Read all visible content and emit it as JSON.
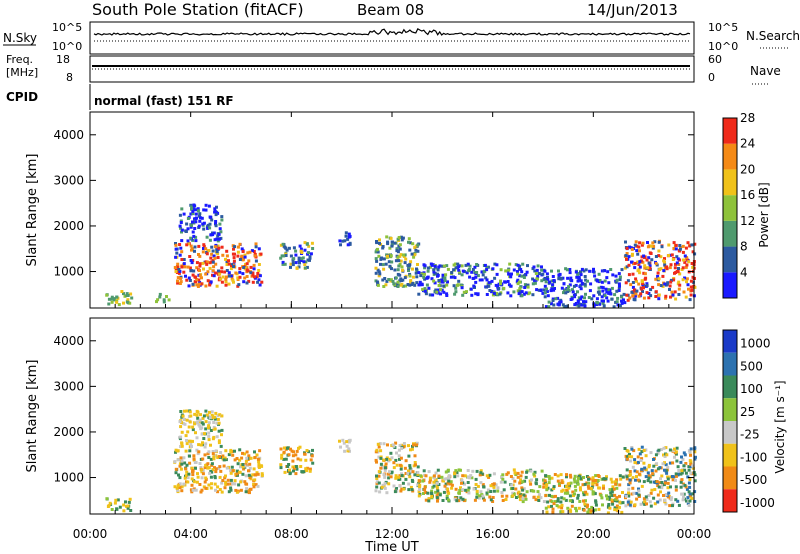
{
  "header": {
    "station": "South Pole Station (fitACF)",
    "beam": "Beam 08",
    "date": "14/Jun/2013"
  },
  "panels": {
    "nsky_label": "N.Sky",
    "nsearch_label": "N.Search",
    "nsky_ticks": [
      "10^5",
      "10^0"
    ],
    "nsearch_ticks": [
      "10^5",
      "10^0"
    ],
    "freq_label": "Freq.",
    "freq_unit": "[MHz]",
    "freq_ticks": [
      "18",
      "8"
    ],
    "nave_label": "Nave",
    "nave_ticks": [
      "60",
      "0"
    ],
    "cpid_label": "CPID",
    "cpid_text": "normal (fast) 151 RF"
  },
  "chart_data": [
    {
      "type": "heatmap",
      "name": "power",
      "ylabel": "Slant Range [km]",
      "xlabel": "",
      "ylim": [
        200,
        4500
      ],
      "xlim": [
        0,
        24
      ],
      "yticks": [
        1000,
        2000,
        3000,
        4000
      ],
      "colorbar": {
        "label": "Power [dB]",
        "ticks": [
          "4",
          "8",
          "12",
          "16",
          "20",
          "24",
          "28"
        ],
        "colors": [
          "#1a1aff",
          "#2c5aa0",
          "#4f9a6e",
          "#8ec23a",
          "#f0c21a",
          "#f58a16",
          "#ef2a1a"
        ],
        "range": [
          0,
          30
        ]
      },
      "blobs": [
        {
          "t0": 0.6,
          "t1": 1.6,
          "r0": 300,
          "r1": 600,
          "c": [
            2,
            3,
            4,
            2
          ]
        },
        {
          "t0": 2.5,
          "t1": 3.1,
          "r0": 350,
          "r1": 550,
          "c": [
            2,
            3,
            2
          ]
        },
        {
          "t0": 3.3,
          "t1": 6.8,
          "r0": 700,
          "r1": 1650,
          "c": [
            6,
            5,
            4,
            1,
            0,
            6,
            5
          ]
        },
        {
          "t0": 3.5,
          "t1": 5.2,
          "r0": 1700,
          "r1": 2500,
          "c": [
            0,
            1,
            0,
            2
          ]
        },
        {
          "t0": 7.5,
          "t1": 8.8,
          "r0": 1100,
          "r1": 1700,
          "c": [
            1,
            0,
            4,
            2
          ]
        },
        {
          "t0": 9.8,
          "t1": 10.3,
          "r0": 1600,
          "r1": 1900,
          "c": [
            0,
            1
          ]
        },
        {
          "t0": 11.3,
          "t1": 13.0,
          "r0": 700,
          "r1": 1800,
          "c": [
            1,
            2,
            3,
            4,
            1
          ]
        },
        {
          "t0": 13.0,
          "t1": 18.0,
          "r0": 500,
          "r1": 1200,
          "c": [
            0,
            1,
            2,
            3,
            0
          ]
        },
        {
          "t0": 18.0,
          "t1": 21.2,
          "r0": 250,
          "r1": 1100,
          "c": [
            0,
            1,
            0,
            2
          ]
        },
        {
          "t0": 21.2,
          "t1": 24.0,
          "r0": 400,
          "r1": 1700,
          "c": [
            6,
            5,
            4,
            1,
            0,
            6
          ]
        }
      ]
    },
    {
      "type": "heatmap",
      "name": "velocity",
      "ylabel": "Slant Range [km]",
      "xlabel": "Time UT",
      "ylim": [
        200,
        4500
      ],
      "xlim": [
        0,
        24
      ],
      "yticks": [
        1000,
        2000,
        3000,
        4000
      ],
      "xticks": [
        "00:00",
        "04:00",
        "08:00",
        "12:00",
        "16:00",
        "20:00",
        "00:00"
      ],
      "colorbar": {
        "label": "Velocity [m s⁻¹]",
        "ticks": [
          "1000",
          "500",
          "100",
          "25",
          "-25",
          "-100",
          "-500",
          "-1000"
        ],
        "colors": [
          "#1a3ac8",
          "#2c72b0",
          "#3a8a5a",
          "#8cc43a",
          "#c8c8c8",
          "#f0c21a",
          "#f08a16",
          "#ef2a1a"
        ],
        "range": [
          -1000,
          1000
        ]
      },
      "blobs": [
        {
          "t0": 0.6,
          "t1": 1.6,
          "r0": 300,
          "r1": 600,
          "c": [
            2,
            3,
            5,
            2
          ]
        },
        {
          "t0": 3.3,
          "t1": 6.8,
          "r0": 700,
          "r1": 1650,
          "c": [
            5,
            6,
            2,
            5,
            4,
            6
          ]
        },
        {
          "t0": 3.5,
          "t1": 5.2,
          "r0": 1700,
          "r1": 2500,
          "c": [
            5,
            4,
            2,
            5
          ]
        },
        {
          "t0": 7.5,
          "t1": 8.8,
          "r0": 1100,
          "r1": 1700,
          "c": [
            5,
            6,
            2
          ]
        },
        {
          "t0": 9.8,
          "t1": 10.3,
          "r0": 1600,
          "r1": 1900,
          "c": [
            4,
            5
          ]
        },
        {
          "t0": 11.3,
          "t1": 13.0,
          "r0": 700,
          "r1": 1800,
          "c": [
            6,
            5,
            2,
            4
          ]
        },
        {
          "t0": 13.0,
          "t1": 18.0,
          "r0": 500,
          "r1": 1200,
          "c": [
            5,
            6,
            2,
            3,
            4
          ]
        },
        {
          "t0": 18.0,
          "t1": 21.2,
          "r0": 250,
          "r1": 1100,
          "c": [
            2,
            5,
            6,
            3
          ]
        },
        {
          "t0": 21.2,
          "t1": 24.0,
          "r0": 400,
          "r1": 1700,
          "c": [
            5,
            6,
            2,
            1,
            4
          ]
        }
      ]
    }
  ]
}
